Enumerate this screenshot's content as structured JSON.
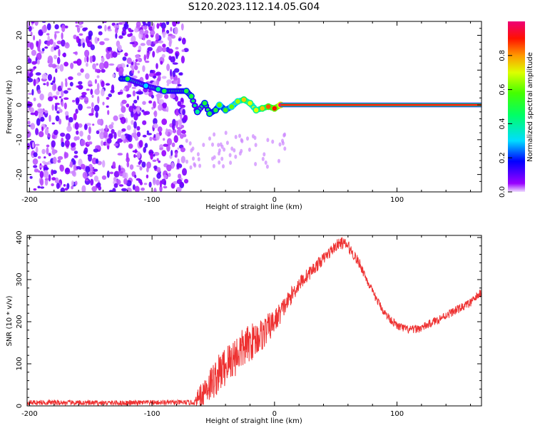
{
  "figure_title": "S120.2023.112.14.05.G04",
  "chart_data": [
    {
      "type": "heatmap",
      "title": "S120.2023.112.14.05.G04",
      "xlabel": "Height of straight line (km)",
      "ylabel": "Frequency (Hz)",
      "xlim": [
        -202,
        169
      ],
      "ylim": [
        -25,
        24
      ],
      "x_ticks": [
        -200,
        -100,
        0,
        100
      ],
      "y_ticks": [
        -20,
        -10,
        0,
        10,
        20
      ],
      "noise_region_x": [
        -202,
        -72
      ],
      "signal_trace": [
        {
          "x": -120,
          "f": 7.5,
          "a": 0.5
        },
        {
          "x": -105,
          "f": 5.5,
          "a": 0.3
        },
        {
          "x": -95,
          "f": 4.5,
          "a": 0.4
        },
        {
          "x": -90,
          "f": 4.0,
          "a": 0.5
        },
        {
          "x": -72,
          "f": 4.0,
          "a": 0.5
        },
        {
          "x": -68,
          "f": 2.5,
          "a": 0.5
        },
        {
          "x": -63,
          "f": -2.0,
          "a": 0.4
        },
        {
          "x": -57,
          "f": 0.5,
          "a": 0.5
        },
        {
          "x": -53,
          "f": -2.5,
          "a": 0.5
        },
        {
          "x": -48,
          "f": -1.5,
          "a": 0.5
        },
        {
          "x": -45,
          "f": 0.0,
          "a": 0.6
        },
        {
          "x": -40,
          "f": -1.5,
          "a": 0.55
        },
        {
          "x": -35,
          "f": -0.5,
          "a": 0.6
        },
        {
          "x": -30,
          "f": 1.0,
          "a": 0.65
        },
        {
          "x": -25,
          "f": 1.5,
          "a": 0.75
        },
        {
          "x": -20,
          "f": 0.5,
          "a": 0.7
        },
        {
          "x": -15,
          "f": -1.5,
          "a": 0.7
        },
        {
          "x": -10,
          "f": -1.0,
          "a": 0.75
        },
        {
          "x": -5,
          "f": -0.5,
          "a": 0.85
        },
        {
          "x": 0,
          "f": -1.0,
          "a": 0.9
        },
        {
          "x": 5,
          "f": 0.0,
          "a": 1.0
        },
        {
          "x": 169,
          "f": 0.0,
          "a": 1.0
        }
      ],
      "colorbar": {
        "label": "Normalized spectral amplitude",
        "range": [
          0,
          1
        ],
        "ticks": [
          "0.0",
          "0.2",
          "0.4",
          "0.6",
          "0.8"
        ]
      }
    },
    {
      "type": "line",
      "title": "",
      "xlabel": "Height of straight line (km)",
      "ylabel": "SNR (10 * v/v)",
      "xlim": [
        -202,
        169
      ],
      "ylim": [
        0,
        405
      ],
      "x_ticks": [
        -200,
        -100,
        0,
        100
      ],
      "y_ticks": [
        0,
        100,
        200,
        300,
        400
      ],
      "color": "#ee3333",
      "series": [
        {
          "name": "SNR",
          "x": [
            -202,
            -180,
            -160,
            -140,
            -120,
            -100,
            -80,
            -65,
            -60,
            -50,
            -40,
            -30,
            -20,
            -10,
            0,
            10,
            20,
            30,
            40,
            50,
            55,
            60,
            70,
            80,
            90,
            100,
            110,
            120,
            130,
            140,
            150,
            160,
            169
          ],
          "values": [
            8,
            8,
            7,
            7,
            7,
            8,
            8,
            8,
            30,
            60,
            95,
            125,
            150,
            170,
            200,
            245,
            290,
            320,
            350,
            380,
            388,
            380,
            335,
            270,
            220,
            190,
            180,
            185,
            200,
            215,
            230,
            245,
            270
          ],
          "noise_amplitude": [
            6,
            6,
            6,
            6,
            6,
            6,
            6,
            6,
            35,
            45,
            50,
            50,
            45,
            40,
            30,
            22,
            18,
            16,
            14,
            14,
            14,
            14,
            12,
            10,
            10,
            10,
            10,
            10,
            10,
            10,
            10,
            10,
            10
          ]
        }
      ]
    }
  ]
}
